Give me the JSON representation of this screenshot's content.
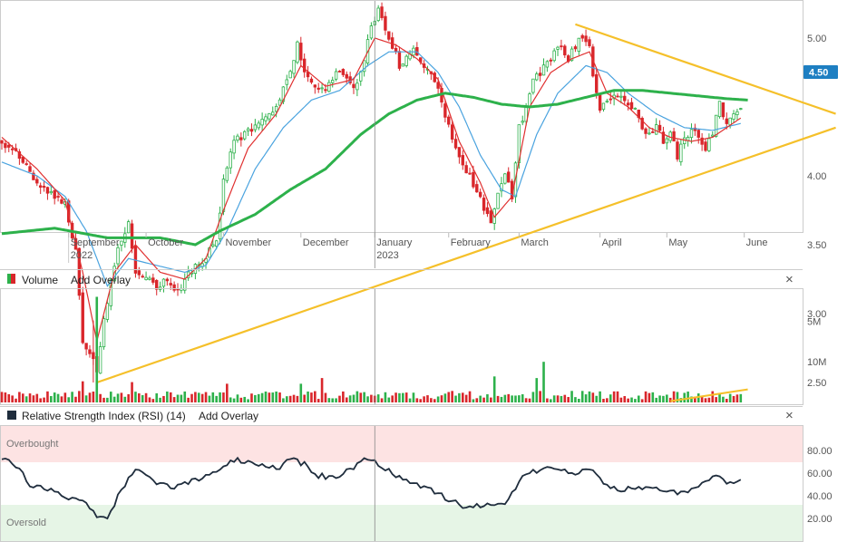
{
  "colors": {
    "up": "#2db14b",
    "down": "#d9262b",
    "sma_fast": "#e03030",
    "sma_mid": "#4aa3df",
    "sma_slow": "#2db14b",
    "trendline": "#f5c02a",
    "rsi_line": "#1f2d3d",
    "overbought_fill": "#fde3e3",
    "oversold_fill": "#e6f5e6",
    "price_tag": "#1e7fc2",
    "volume_icon": "#d9262b",
    "rsi_icon": "#1f2d3d"
  },
  "price_panel": {
    "last_price_label": "4.50",
    "month_labels": [
      {
        "label": "September",
        "sub": "2022",
        "t": 19
      },
      {
        "label": "October",
        "sub": "",
        "t": 41
      },
      {
        "label": "November",
        "sub": "",
        "t": 63
      },
      {
        "label": "December",
        "sub": "",
        "t": 85
      },
      {
        "label": "January",
        "sub": "2023",
        "t": 106
      },
      {
        "label": "February",
        "sub": "",
        "t": 127
      },
      {
        "label": "March",
        "sub": "",
        "t": 147
      },
      {
        "label": "April",
        "sub": "",
        "t": 170
      },
      {
        "label": "May",
        "sub": "",
        "t": 189
      },
      {
        "label": "June",
        "sub": "",
        "t": 211
      }
    ],
    "y_ticks": [
      "5.00",
      "4.50",
      "4.00",
      "3.50",
      "3.00",
      "2.50"
    ]
  },
  "volume_panel": {
    "title": "Volume",
    "overlay_label": "Add Overlay",
    "close_glyph": "×",
    "y_ticks": [
      "10M",
      "5M"
    ]
  },
  "rsi_panel": {
    "title": "Relative Strength Index (RSI) (14)",
    "overlay_label": "Add Overlay",
    "close_glyph": "×",
    "overbought_label": "Overbought",
    "oversold_label": "Oversold",
    "y_ticks": [
      "80.00",
      "60.00",
      "40.00",
      "20.00"
    ]
  },
  "chart_data": [
    {
      "type": "candlestick",
      "title": "",
      "x_range": [
        0,
        225
      ],
      "ylim": [
        2.2,
        5.5
      ],
      "anchors_close": [
        [
          0,
          4.25
        ],
        [
          5,
          4.15
        ],
        [
          10,
          3.95
        ],
        [
          15,
          3.85
        ],
        [
          18,
          3.8
        ],
        [
          21,
          3.45
        ],
        [
          23,
          2.8
        ],
        [
          25,
          2.7
        ],
        [
          27,
          2.6
        ],
        [
          30,
          3.1
        ],
        [
          33,
          3.5
        ],
        [
          36,
          3.65
        ],
        [
          38,
          3.3
        ],
        [
          41,
          3.25
        ],
        [
          44,
          3.2
        ],
        [
          47,
          3.25
        ],
        [
          50,
          3.15
        ],
        [
          53,
          3.3
        ],
        [
          56,
          3.35
        ],
        [
          59,
          3.45
        ],
        [
          61,
          3.55
        ],
        [
          63,
          3.95
        ],
        [
          66,
          4.25
        ],
        [
          69,
          4.3
        ],
        [
          72,
          4.35
        ],
        [
          75,
          4.45
        ],
        [
          78,
          4.5
        ],
        [
          81,
          4.7
        ],
        [
          84,
          4.95
        ],
        [
          86,
          4.75
        ],
        [
          89,
          4.65
        ],
        [
          92,
          4.6
        ],
        [
          95,
          4.75
        ],
        [
          98,
          4.7
        ],
        [
          101,
          4.65
        ],
        [
          103,
          4.85
        ],
        [
          105,
          5.1
        ],
        [
          107,
          5.2
        ],
        [
          109,
          5.05
        ],
        [
          111,
          4.95
        ],
        [
          113,
          4.8
        ],
        [
          115,
          4.85
        ],
        [
          117,
          4.9
        ],
        [
          119,
          4.85
        ],
        [
          121,
          4.75
        ],
        [
          123,
          4.7
        ],
        [
          125,
          4.55
        ],
        [
          127,
          4.35
        ],
        [
          129,
          4.2
        ],
        [
          131,
          4.1
        ],
        [
          133,
          4.0
        ],
        [
          135,
          3.9
        ],
        [
          137,
          3.75
        ],
        [
          139,
          3.65
        ],
        [
          141,
          3.9
        ],
        [
          143,
          4.0
        ],
        [
          145,
          3.85
        ],
        [
          147,
          4.35
        ],
        [
          149,
          4.5
        ],
        [
          151,
          4.7
        ],
        [
          153,
          4.75
        ],
        [
          155,
          4.8
        ],
        [
          157,
          4.9
        ],
        [
          159,
          4.95
        ],
        [
          161,
          4.85
        ],
        [
          163,
          4.95
        ],
        [
          165,
          5.0
        ],
        [
          167,
          4.95
        ],
        [
          168,
          4.75
        ],
        [
          170,
          4.45
        ],
        [
          172,
          4.55
        ],
        [
          174,
          4.6
        ],
        [
          176,
          4.55
        ],
        [
          178,
          4.5
        ],
        [
          180,
          4.5
        ],
        [
          182,
          4.35
        ],
        [
          184,
          4.3
        ],
        [
          186,
          4.35
        ],
        [
          188,
          4.25
        ],
        [
          190,
          4.3
        ],
        [
          192,
          4.15
        ],
        [
          194,
          4.25
        ],
        [
          196,
          4.35
        ],
        [
          198,
          4.3
        ],
        [
          200,
          4.2
        ],
        [
          202,
          4.3
        ],
        [
          204,
          4.55
        ],
        [
          206,
          4.35
        ],
        [
          208,
          4.45
        ],
        [
          210,
          4.5
        ]
      ],
      "sma_fast_anchors": [
        [
          0,
          4.28
        ],
        [
          10,
          4.05
        ],
        [
          18,
          3.82
        ],
        [
          23,
          3.3
        ],
        [
          27,
          2.8
        ],
        [
          32,
          3.3
        ],
        [
          38,
          3.5
        ],
        [
          45,
          3.3
        ],
        [
          52,
          3.25
        ],
        [
          58,
          3.4
        ],
        [
          63,
          3.75
        ],
        [
          70,
          4.2
        ],
        [
          78,
          4.45
        ],
        [
          85,
          4.8
        ],
        [
          92,
          4.65
        ],
        [
          100,
          4.7
        ],
        [
          106,
          5.0
        ],
        [
          112,
          4.95
        ],
        [
          118,
          4.85
        ],
        [
          124,
          4.7
        ],
        [
          130,
          4.25
        ],
        [
          136,
          3.95
        ],
        [
          140,
          3.7
        ],
        [
          145,
          3.85
        ],
        [
          150,
          4.5
        ],
        [
          156,
          4.75
        ],
        [
          162,
          4.85
        ],
        [
          167,
          4.9
        ],
        [
          172,
          4.6
        ],
        [
          178,
          4.5
        ],
        [
          184,
          4.35
        ],
        [
          190,
          4.28
        ],
        [
          196,
          4.25
        ],
        [
          202,
          4.28
        ],
        [
          210,
          4.42
        ]
      ],
      "sma_mid_anchors": [
        [
          0,
          4.1
        ],
        [
          10,
          4.0
        ],
        [
          18,
          3.85
        ],
        [
          24,
          3.6
        ],
        [
          30,
          3.2
        ],
        [
          36,
          3.4
        ],
        [
          44,
          3.35
        ],
        [
          52,
          3.3
        ],
        [
          58,
          3.35
        ],
        [
          64,
          3.6
        ],
        [
          72,
          4.05
        ],
        [
          80,
          4.35
        ],
        [
          88,
          4.55
        ],
        [
          96,
          4.62
        ],
        [
          104,
          4.8
        ],
        [
          110,
          4.9
        ],
        [
          118,
          4.9
        ],
        [
          124,
          4.75
        ],
        [
          130,
          4.5
        ],
        [
          136,
          4.15
        ],
        [
          142,
          3.9
        ],
        [
          146,
          3.85
        ],
        [
          152,
          4.3
        ],
        [
          158,
          4.6
        ],
        [
          166,
          4.8
        ],
        [
          172,
          4.75
        ],
        [
          178,
          4.6
        ],
        [
          186,
          4.45
        ],
        [
          194,
          4.35
        ],
        [
          202,
          4.33
        ],
        [
          210,
          4.38
        ]
      ],
      "sma_slow_anchors": [
        [
          0,
          3.58
        ],
        [
          15,
          3.62
        ],
        [
          30,
          3.55
        ],
        [
          45,
          3.55
        ],
        [
          55,
          3.5
        ],
        [
          62,
          3.6
        ],
        [
          72,
          3.72
        ],
        [
          82,
          3.9
        ],
        [
          92,
          4.05
        ],
        [
          102,
          4.3
        ],
        [
          110,
          4.45
        ],
        [
          118,
          4.55
        ],
        [
          126,
          4.6
        ],
        [
          134,
          4.57
        ],
        [
          142,
          4.52
        ],
        [
          150,
          4.5
        ],
        [
          158,
          4.52
        ],
        [
          166,
          4.57
        ],
        [
          174,
          4.62
        ],
        [
          182,
          4.62
        ],
        [
          190,
          4.6
        ],
        [
          198,
          4.58
        ],
        [
          206,
          4.56
        ],
        [
          212,
          4.55
        ]
      ],
      "trendlines": [
        {
          "points": [
            [
              27,
              2.5
            ],
            [
              237,
              4.35
            ]
          ]
        },
        {
          "points": [
            [
              163,
              5.1
            ],
            [
              237,
              4.45
            ]
          ]
        }
      ]
    },
    {
      "type": "bar",
      "title": "Volume",
      "ylim": [
        0,
        13500000
      ],
      "y_ticks": [
        5000000,
        10000000
      ],
      "base_volume": 650000,
      "spikes": [
        [
          27,
          13000000
        ],
        [
          140,
          3200000
        ],
        [
          91,
          3000000
        ],
        [
          154,
          5000000
        ],
        [
          152,
          3000000
        ],
        [
          37,
          2500000
        ],
        [
          23,
          2600000
        ],
        [
          85,
          2300000
        ],
        [
          64,
          2300000
        ]
      ],
      "trendline": {
        "points": [
          [
            190,
            0.15
          ],
          [
            212,
            1.6
          ]
        ]
      }
    },
    {
      "type": "line",
      "title": "Relative Strength Index (RSI) (14)",
      "ylim": [
        0,
        100
      ],
      "y_ticks": [
        20,
        40,
        60,
        80
      ],
      "overbought": 70,
      "oversold": 30,
      "values_anchors": [
        [
          0,
          72
        ],
        [
          5,
          65
        ],
        [
          8,
          50
        ],
        [
          12,
          48
        ],
        [
          16,
          42
        ],
        [
          20,
          38
        ],
        [
          24,
          35
        ],
        [
          27,
          22
        ],
        [
          30,
          20
        ],
        [
          34,
          45
        ],
        [
          38,
          65
        ],
        [
          42,
          55
        ],
        [
          46,
          50
        ],
        [
          50,
          48
        ],
        [
          56,
          55
        ],
        [
          62,
          62
        ],
        [
          66,
          72
        ],
        [
          70,
          70
        ],
        [
          74,
          66
        ],
        [
          78,
          64
        ],
        [
          82,
          72
        ],
        [
          86,
          68
        ],
        [
          90,
          58
        ],
        [
          94,
          56
        ],
        [
          100,
          65
        ],
        [
          103,
          72
        ],
        [
          106,
          70
        ],
        [
          110,
          62
        ],
        [
          114,
          55
        ],
        [
          118,
          50
        ],
        [
          124,
          42
        ],
        [
          128,
          35
        ],
        [
          132,
          30
        ],
        [
          136,
          32
        ],
        [
          140,
          30
        ],
        [
          144,
          35
        ],
        [
          148,
          60
        ],
        [
          152,
          62
        ],
        [
          158,
          64
        ],
        [
          164,
          60
        ],
        [
          168,
          65
        ],
        [
          172,
          48
        ],
        [
          176,
          45
        ],
        [
          182,
          48
        ],
        [
          188,
          44
        ],
        [
          194,
          42
        ],
        [
          198,
          48
        ],
        [
          202,
          58
        ],
        [
          204,
          55
        ],
        [
          206,
          50
        ],
        [
          210,
          56
        ]
      ]
    }
  ]
}
